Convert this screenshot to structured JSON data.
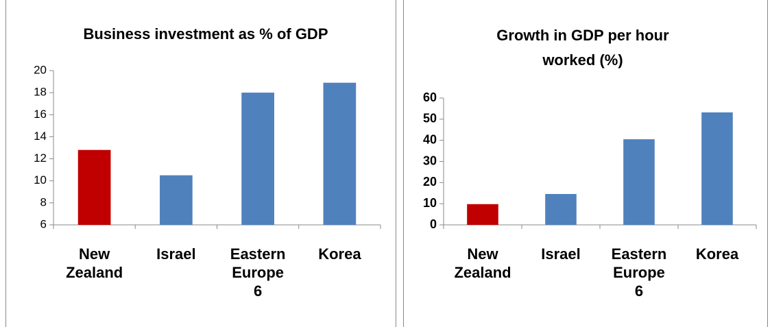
{
  "chart_data": [
    {
      "type": "bar",
      "title": "Business investment as % of GDP",
      "categories": [
        "New Zealand",
        "Israel",
        "Eastern Europe 6",
        "Korea"
      ],
      "values": [
        12.8,
        10.5,
        18.0,
        18.9
      ],
      "colors": [
        "#c00000",
        "#4f81bd",
        "#4f81bd",
        "#4f81bd"
      ],
      "ylim": [
        6,
        20
      ],
      "yticks": [
        6,
        8,
        10,
        12,
        14,
        16,
        18,
        20
      ]
    },
    {
      "type": "bar",
      "title": "Growth in GDP per hour worked (%)",
      "categories": [
        "New Zealand",
        "Israel",
        "Eastern Europe 6",
        "Korea"
      ],
      "values": [
        9.8,
        14.6,
        40.5,
        53.2
      ],
      "colors": [
        "#c00000",
        "#4f81bd",
        "#4f81bd",
        "#4f81bd"
      ],
      "ylim": [
        0,
        60
      ],
      "yticks": [
        0,
        10,
        20,
        30,
        40,
        50,
        60
      ]
    }
  ]
}
